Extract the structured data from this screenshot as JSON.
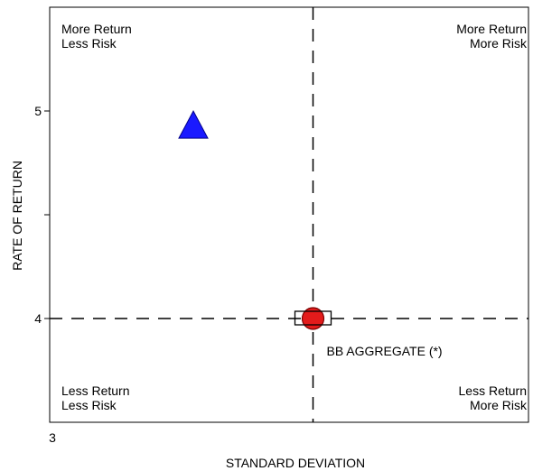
{
  "chart_data": {
    "type": "scatter",
    "title": "",
    "xlabel": "STANDARD DEVIATION",
    "ylabel": "RATE OF RETURN",
    "x_ticks": [
      3
    ],
    "x_tick_labels": [
      "3"
    ],
    "y_ticks": [
      4,
      4.5,
      5
    ],
    "y_tick_labels": [
      "4",
      "",
      "5"
    ],
    "xlim": [
      3,
      5
    ],
    "ylim": [
      3.5,
      5.5
    ],
    "reference_lines": {
      "x": 4.1,
      "y": 4.0
    },
    "quadrant_labels": {
      "top_left": [
        "More Return",
        "Less Risk"
      ],
      "top_right": [
        "More Return",
        "More Risk"
      ],
      "bottom_left": [
        "Less Return",
        "Less Risk"
      ],
      "bottom_right": [
        "Less Return",
        "More Risk"
      ]
    },
    "points": [
      {
        "name": "",
        "x": 3.6,
        "y": 4.93,
        "marker": "triangle",
        "color": "#1a1aff"
      },
      {
        "name": "",
        "x": 4.1,
        "y": 4.0,
        "marker": "circle",
        "color": "#e31b1b"
      },
      {
        "name": "",
        "x": 4.1,
        "y": 4.0,
        "marker": "square",
        "color": "#ffffff"
      }
    ],
    "annotations": [
      {
        "text": "BB AGGREGATE (*)",
        "x": 4.1,
        "y": 4.0
      }
    ],
    "grid": false,
    "legend": "none"
  }
}
